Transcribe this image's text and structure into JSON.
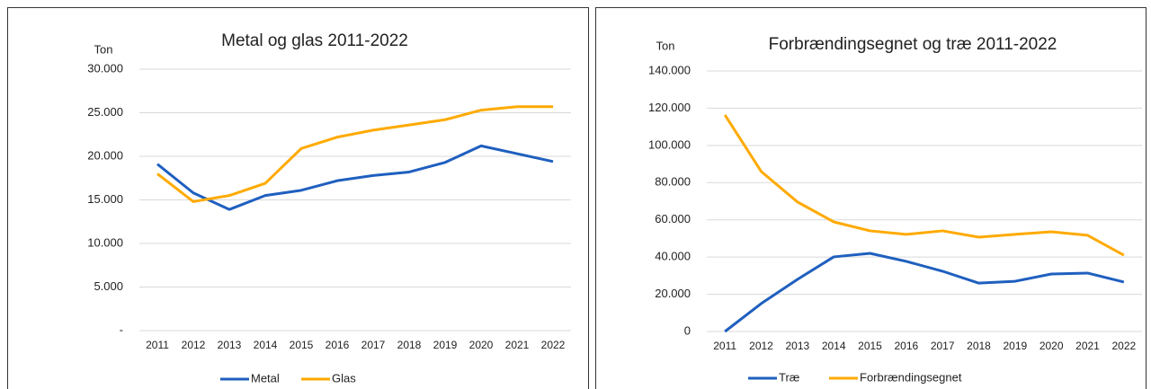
{
  "chart_data": [
    {
      "type": "line",
      "title": "Metal og glas 2011-2022",
      "y_label": "Ton",
      "categories": [
        "2011",
        "2012",
        "2013",
        "2014",
        "2015",
        "2016",
        "2017",
        "2018",
        "2019",
        "2020",
        "2021",
        "2022"
      ],
      "series": [
        {
          "name": "Metal",
          "color": "#1f5fbf",
          "values": [
            19100,
            15800,
            13900,
            15500,
            16100,
            17200,
            17800,
            18200,
            19300,
            21200,
            20300,
            19400
          ]
        },
        {
          "name": "Glas",
          "color": "#ffaa00",
          "values": [
            18000,
            14800,
            15500,
            16900,
            20900,
            22200,
            23000,
            23600,
            24200,
            25300,
            25700,
            25700
          ]
        }
      ],
      "ylim": [
        0,
        30000
      ],
      "yticks": [
        {
          "value": 0,
          "label": "-"
        },
        {
          "value": 5000,
          "label": "5.000"
        },
        {
          "value": 10000,
          "label": "10.000"
        },
        {
          "value": 15000,
          "label": "15.000"
        },
        {
          "value": 20000,
          "label": "20.000"
        },
        {
          "value": 25000,
          "label": "25.000"
        },
        {
          "value": 30000,
          "label": "30.000"
        }
      ],
      "grid": true,
      "legend": "bottom"
    },
    {
      "type": "line",
      "title": "Forbrændingsegnet og træ 2011-2022",
      "y_label": "Ton",
      "categories": [
        "2011",
        "2012",
        "2013",
        "2014",
        "2015",
        "2016",
        "2017",
        "2018",
        "2019",
        "2020",
        "2021",
        "2022"
      ],
      "series": [
        {
          "name": "Træ",
          "color": "#1f5fbf",
          "values": [
            0,
            15000,
            28000,
            40100,
            42000,
            37700,
            32400,
            26000,
            27000,
            30900,
            31400,
            26600
          ]
        },
        {
          "name": "Forbrændingsegnet",
          "color": "#ffaa00",
          "values": [
            116400,
            86000,
            69600,
            58900,
            54100,
            52200,
            54100,
            50700,
            52200,
            53600,
            51700,
            41000
          ]
        }
      ],
      "ylim": [
        0,
        140000
      ],
      "yticks": [
        0,
        {
          "value": 20000,
          "label": "20.000"
        },
        {
          "value": 40000,
          "label": "40.000"
        },
        {
          "value": 60000,
          "label": "60.000"
        },
        {
          "value": 80000,
          "label": "80.000"
        },
        {
          "value": 100000,
          "label": "100.000"
        },
        {
          "value": 120000,
          "label": "120.000"
        },
        {
          "value": 140000,
          "label": "140.000"
        }
      ],
      "grid": true,
      "legend": "bottom"
    }
  ]
}
